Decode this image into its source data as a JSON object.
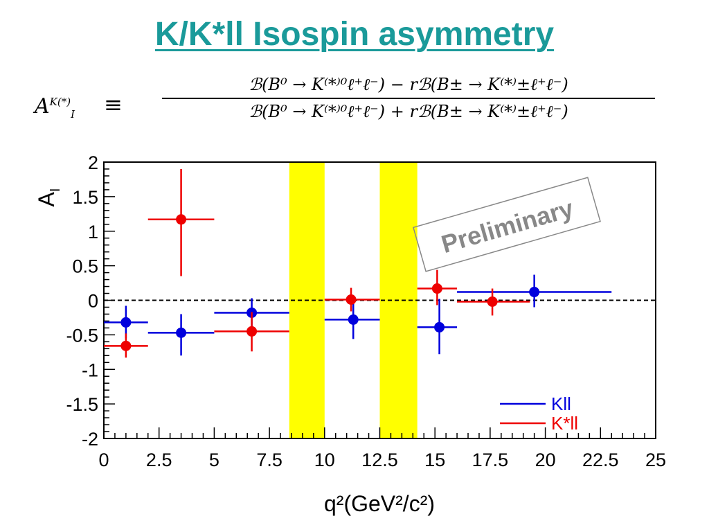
{
  "slide": {
    "title": "K/K*ll Isospin asymmetry"
  },
  "formula": {
    "lhs": "A",
    "lhs_sub": "I",
    "lhs_sup": "K(*)",
    "equiv": "≡",
    "numerator": "ℬ(B⁰ → K⁽*⁾⁰ℓ⁺ℓ⁻) − rℬ(B± → K⁽*⁾±ℓ⁺ℓ⁻)",
    "denominator": "ℬ(B⁰ → K⁽*⁾⁰ℓ⁺ℓ⁻) + rℬ(B± → K⁽*⁾±ℓ⁺ℓ⁻)"
  },
  "chart_data": {
    "type": "scatter",
    "ylabel": "A_I",
    "xlabel": "q²(GeV²/c²)",
    "xlim": [
      0,
      25
    ],
    "ylim": [
      -2,
      2
    ],
    "x_ticks": [
      "0",
      "2.5",
      "5",
      "7.5",
      "10",
      "12.5",
      "15",
      "17.5",
      "20",
      "22.5",
      "25"
    ],
    "y_ticks": [
      "2",
      "1.5",
      "1",
      "0.5",
      "0",
      "-0.5",
      "-1",
      "-1.5",
      "-2"
    ],
    "reference_line": {
      "y": 0,
      "style": "dashed"
    },
    "vetoed_bands": [
      {
        "x_from": 8.4,
        "x_to": 10.0,
        "color": "#ffff00"
      },
      {
        "x_from": 12.5,
        "x_to": 14.2,
        "color": "#ffff00"
      }
    ],
    "annotation": "Preliminary",
    "legend_position": "bottom-right",
    "series": [
      {
        "name": "Kll",
        "color": "#0000dd",
        "points": [
          {
            "x": 1.0,
            "y": -0.32,
            "xlo": 0.0,
            "xhi": 2.0,
            "ylo": -0.55,
            "yhi": -0.08
          },
          {
            "x": 3.5,
            "y": -0.47,
            "xlo": 2.0,
            "xhi": 5.0,
            "ylo": -0.8,
            "yhi": -0.2
          },
          {
            "x": 6.7,
            "y": -0.18,
            "xlo": 5.0,
            "xhi": 8.4,
            "ylo": -0.42,
            "yhi": 0.03
          },
          {
            "x": 11.3,
            "y": -0.28,
            "xlo": 10.0,
            "xhi": 12.5,
            "ylo": -0.56,
            "yhi": -0.02
          },
          {
            "x": 15.2,
            "y": -0.39,
            "xlo": 14.2,
            "xhi": 16.0,
            "ylo": -0.78,
            "yhi": 0.02
          },
          {
            "x": 19.5,
            "y": 0.12,
            "xlo": 16.0,
            "xhi": 23.0,
            "ylo": -0.1,
            "yhi": 0.37
          }
        ]
      },
      {
        "name": "K*ll",
        "color": "#ee0000",
        "points": [
          {
            "x": 1.0,
            "y": -0.66,
            "xlo": 0.0,
            "xhi": 2.0,
            "ylo": -0.83,
            "yhi": -0.48
          },
          {
            "x": 3.5,
            "y": 1.17,
            "xlo": 2.0,
            "xhi": 5.0,
            "ylo": 0.35,
            "yhi": 1.9
          },
          {
            "x": 6.7,
            "y": -0.45,
            "xlo": 5.0,
            "xhi": 8.4,
            "ylo": -0.74,
            "yhi": -0.17
          },
          {
            "x": 11.2,
            "y": 0.01,
            "xlo": 10.0,
            "xhi": 12.5,
            "ylo": -0.16,
            "yhi": 0.18
          },
          {
            "x": 15.1,
            "y": 0.17,
            "xlo": 14.2,
            "xhi": 16.0,
            "ylo": -0.07,
            "yhi": 0.44
          },
          {
            "x": 17.6,
            "y": -0.02,
            "xlo": 16.0,
            "xhi": 19.3,
            "ylo": -0.22,
            "yhi": 0.17
          }
        ]
      }
    ]
  }
}
